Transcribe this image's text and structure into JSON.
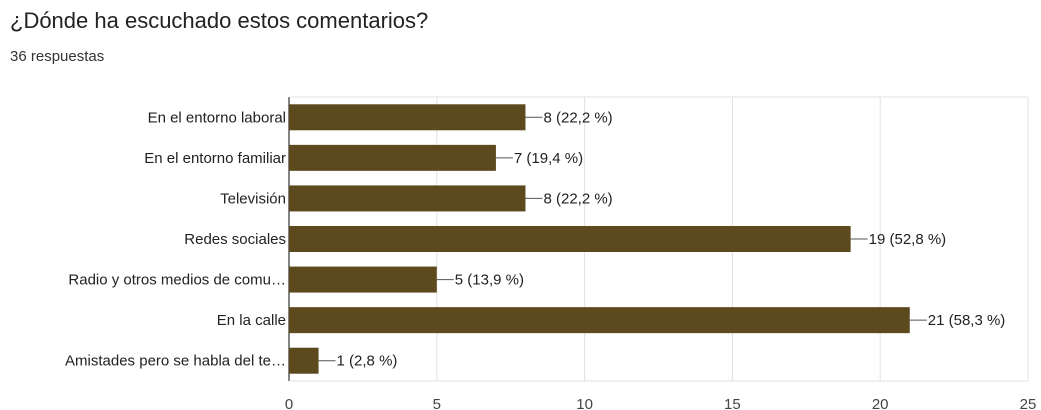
{
  "chart_data": {
    "type": "bar",
    "orientation": "horizontal",
    "title": "¿Dónde ha escuchado estos comentarios?",
    "subtitle": "36 respuestas",
    "categories": [
      "En el entorno laboral",
      "En el entorno familiar",
      "Televisión",
      "Redes sociales",
      "Radio y otros medios de comu…",
      "En la calle",
      "Amistades pero se habla del te…"
    ],
    "values": [
      8,
      7,
      8,
      19,
      5,
      21,
      1
    ],
    "data_labels": [
      "8 (22,2 %)",
      "7 (19,4 %)",
      "8 (22,2 %)",
      "19 (52,8 %)",
      "5 (13,9 %)",
      "21 (58,3 %)",
      "1 (2,8 %)"
    ],
    "xlim": [
      0,
      25
    ],
    "xticks": [
      0,
      5,
      10,
      15,
      20,
      25
    ],
    "grid": true,
    "bar_color": "#5c4a1e"
  }
}
